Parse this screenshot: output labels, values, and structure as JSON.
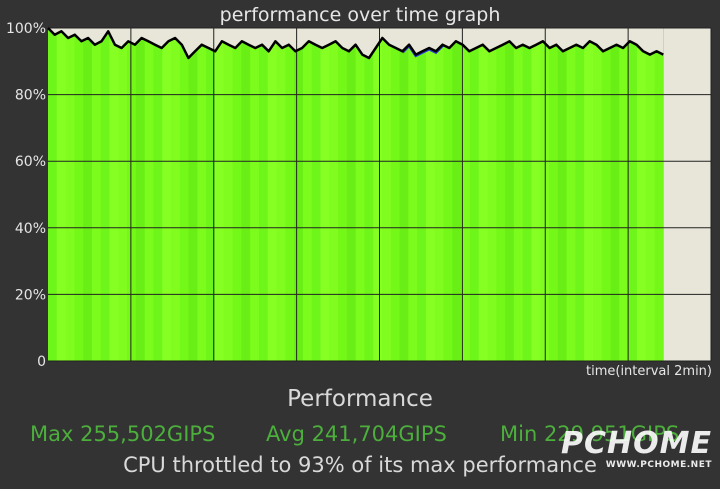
{
  "chart_data": {
    "type": "area",
    "title": "performance over time graph",
    "xlabel": "time(interval 2min)",
    "ylabel": "",
    "ylim": [
      0,
      100
    ],
    "y_ticks": [
      "0",
      "20%",
      "40%",
      "60%",
      "80%",
      "100%"
    ],
    "y_tick_values": [
      0,
      20,
      40,
      60,
      80,
      100
    ],
    "x_gridlines": 8,
    "grid": true,
    "colors": {
      "fill": "#7cfc1c",
      "line": "#000000",
      "empty_area": "#e8e6d9",
      "grid": "#222222",
      "highlight": "#2b3dd6"
    },
    "series": [
      {
        "x_fraction_end": 0.928,
        "values": [
          100,
          98,
          99,
          97,
          98,
          96,
          97,
          95,
          96,
          99,
          95,
          94,
          96,
          95,
          97,
          96,
          95,
          94,
          96,
          97,
          95,
          91,
          93,
          95,
          94,
          93,
          96,
          95,
          94,
          96,
          95,
          94,
          95,
          93,
          96,
          94,
          95,
          93,
          94,
          96,
          95,
          94,
          95,
          96,
          94,
          93,
          95,
          92,
          91,
          94,
          97,
          95,
          94,
          93,
          95,
          92,
          93,
          94,
          93,
          95,
          94,
          96,
          95,
          93,
          94,
          95,
          93,
          94,
          95,
          96,
          94,
          95,
          94,
          95,
          96,
          94,
          95,
          93,
          94,
          95,
          94,
          96,
          95,
          93,
          94,
          95,
          94,
          96,
          95,
          93,
          92,
          93,
          92
        ]
      }
    ]
  },
  "stats": {
    "heading": "Performance",
    "max": "Max 255,502GIPS",
    "avg": "Avg 241,704GIPS",
    "min": "Min 229,951GIPS",
    "throttle": "CPU throttled to 93% of its max performance"
  },
  "watermark": {
    "logo": "PCHOME",
    "url": "WWW.PCHOME.NET"
  }
}
